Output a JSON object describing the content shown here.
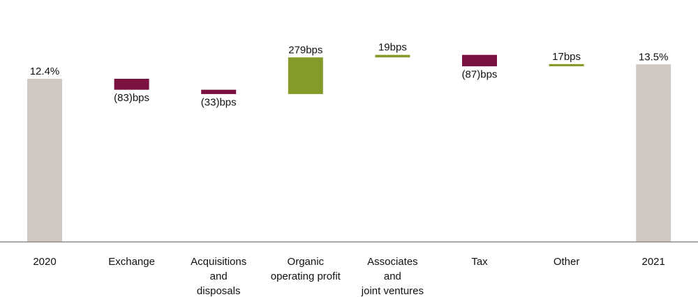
{
  "chart_data": {
    "type": "waterfall",
    "title": "",
    "xlabel": "",
    "ylabel": "",
    "unit": "bps",
    "ylim": [
      0,
      1420
    ],
    "colors": {
      "total": "#d1c8c3",
      "negative": "#7a1140",
      "positive": "#849b2a",
      "axis": "#8c8c8c",
      "text": "#111111"
    },
    "bars": [
      {
        "category": [
          "2020"
        ],
        "kind": "total",
        "value": 1240,
        "label": "12.4%"
      },
      {
        "category": [
          "Exchange"
        ],
        "kind": "negative",
        "value": -83,
        "label": "(83)bps"
      },
      {
        "category": [
          "Acquisitions",
          "and",
          "disposals"
        ],
        "kind": "negative",
        "value": -33,
        "label": "(33)bps"
      },
      {
        "category": [
          "Organic",
          "operating profit"
        ],
        "kind": "positive",
        "value": 279,
        "label": "279bps"
      },
      {
        "category": [
          "Associates",
          "and",
          "joint ventures"
        ],
        "kind": "positive",
        "value": 19,
        "label": "19bps"
      },
      {
        "category": [
          "Tax"
        ],
        "kind": "negative",
        "value": -87,
        "label": "(87)bps"
      },
      {
        "category": [
          "Other"
        ],
        "kind": "positive",
        "value": 17,
        "label": "17bps"
      },
      {
        "category": [
          "2021"
        ],
        "kind": "total",
        "value": 1350,
        "label": "13.5%"
      }
    ]
  }
}
